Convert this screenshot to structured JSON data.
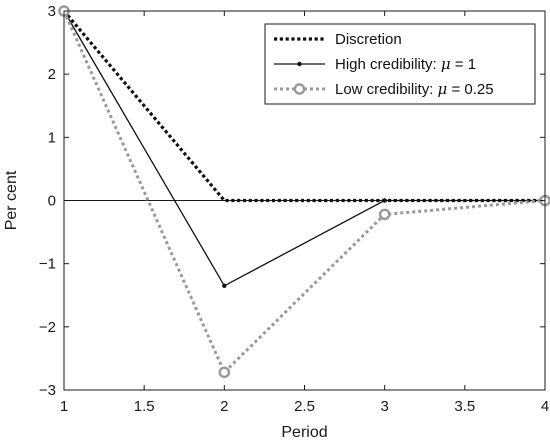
{
  "chart_data": {
    "type": "line",
    "xlabel": "Period",
    "ylabel": "Per cent",
    "xlim": [
      1,
      4
    ],
    "ylim": [
      -3,
      3
    ],
    "xticks": [
      "1",
      "1.5",
      "2",
      "2.5",
      "3",
      "3.5",
      "4"
    ],
    "yticks": [
      "−3",
      "−2",
      "−1",
      "0",
      "1",
      "2",
      "3"
    ],
    "grid": false,
    "legend_position": "top-right",
    "reference_line_y": 0,
    "x": [
      1,
      2,
      3,
      4
    ],
    "series": [
      {
        "name": "Discretion",
        "name_parts": {
          "text": "Discretion",
          "mu": "",
          "value": ""
        },
        "values": [
          3,
          0,
          0,
          0
        ],
        "color": "#111111",
        "style": "dotted-heavy",
        "marker": "none"
      },
      {
        "name": "High credibility: μ = 1",
        "name_parts": {
          "text": "High credibility: ",
          "mu": "μ",
          "value": " = 1"
        },
        "values": [
          3,
          -1.35,
          0,
          0
        ],
        "color": "#111111",
        "style": "solid",
        "marker": "dot"
      },
      {
        "name": "Low credibility: μ = 0.25",
        "name_parts": {
          "text": "Low credibility: ",
          "mu": "μ",
          "value": " = 0.25"
        },
        "values": [
          3,
          -2.72,
          -0.22,
          0
        ],
        "color": "#999999",
        "style": "dotted",
        "marker": "open-circle"
      }
    ]
  }
}
